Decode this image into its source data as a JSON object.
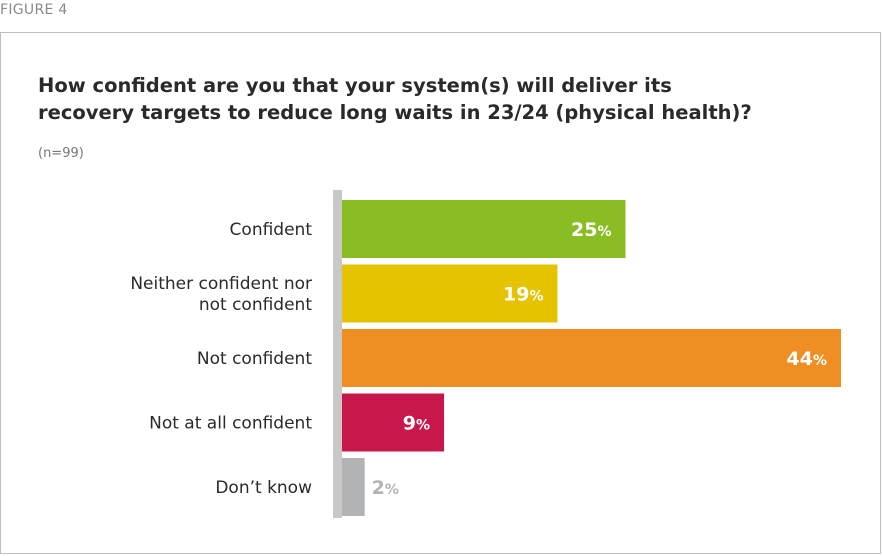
{
  "figure_label": "FIGURE 4",
  "title_line1": "How confident are you that your system(s) will deliver its",
  "title_line2": "recovery targets to reduce long waits in 23/24 (physical health)?",
  "subtitle": "(n=99)",
  "chart_data": {
    "type": "bar",
    "orientation": "horizontal",
    "categories": [
      [
        "Confident"
      ],
      [
        "Neither confident nor",
        "not confident"
      ],
      [
        "Not confident"
      ],
      [
        "Not at all confident"
      ],
      [
        "Don’t know"
      ]
    ],
    "values": [
      25,
      19,
      44,
      9,
      2
    ],
    "value_suffix": "%",
    "colors": [
      "#8abd24",
      "#e5c300",
      "#ef8e22",
      "#c8174b",
      "#b1b3b5"
    ],
    "label_colors": [
      "#ffffff",
      "#ffffff",
      "#ffffff",
      "#ffffff",
      "#b1b3b5"
    ],
    "axis_color": "#c8c8c8",
    "xlim": [
      0,
      44
    ],
    "grid": false,
    "legend": false
  }
}
